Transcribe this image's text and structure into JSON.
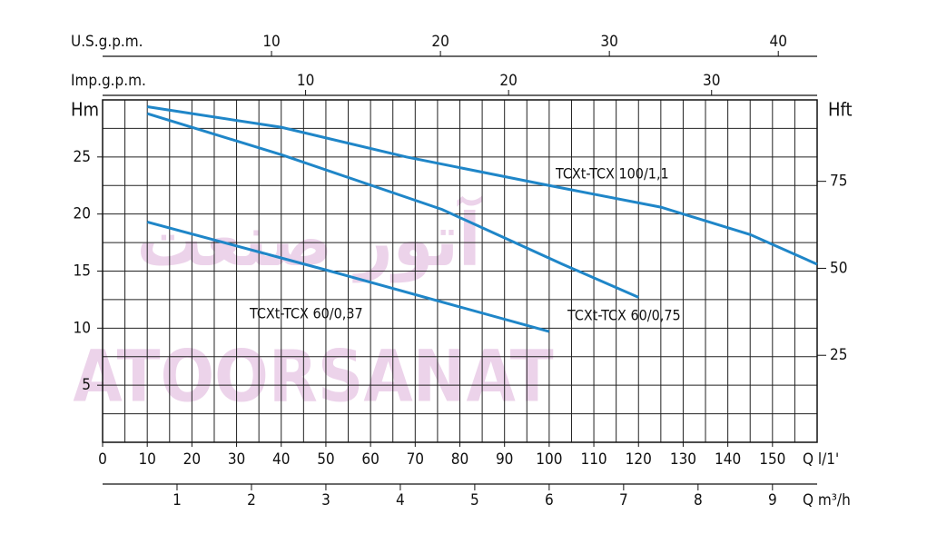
{
  "chart_data": {
    "type": "line",
    "watermark": "ATOORSANAT",
    "watermark_fa": "آتور صنعت",
    "xlabel": "Q l/1'",
    "xlim": [
      0,
      160
    ],
    "xticks": [
      0,
      10,
      20,
      30,
      40,
      50,
      60,
      70,
      80,
      90,
      100,
      110,
      120,
      130,
      140,
      150
    ],
    "xgrid_step": 5,
    "ylabel": "Hm",
    "ylim": [
      0,
      30
    ],
    "yticks": [
      5,
      10,
      15,
      20,
      25
    ],
    "ygrid_step": 2.5,
    "y2label": "Hft",
    "y2lim": [
      0,
      98.4
    ],
    "y2ticks": [
      25,
      50,
      75
    ],
    "x_top": [
      {
        "label": "U.S.g.p.m.",
        "lim": [
          0,
          42.3
        ],
        "ticks": [
          10,
          20,
          30,
          40
        ]
      },
      {
        "label": "Imp.g.p.m.",
        "lim": [
          0,
          35.2
        ],
        "ticks": [
          10,
          20,
          30
        ]
      }
    ],
    "x_bottom2": {
      "label": "Q m³/h",
      "lim": [
        0,
        9.6
      ],
      "ticks": [
        1,
        2,
        3,
        4,
        5,
        6,
        7,
        8,
        9
      ]
    },
    "grid": true,
    "series": [
      {
        "name": "TCXt-TCX 100/1,1",
        "color": "#1f86c8",
        "x": [
          10,
          40,
          68,
          100,
          125,
          145,
          160
        ],
        "values": [
          29.4,
          27.6,
          25,
          22.5,
          20.6,
          18.2,
          15.6
        ]
      },
      {
        "name": "TCXt-TCX 60/0,75",
        "color": "#1f86c8",
        "x": [
          10,
          40,
          76,
          103,
          120
        ],
        "values": [
          28.8,
          25.2,
          20.4,
          15.6,
          12.7
        ]
      },
      {
        "name": "TCXt-TCX 60/0,37",
        "color": "#1f86c8",
        "x": [
          10,
          50,
          100
        ],
        "values": [
          19.3,
          15.1,
          9.7
        ]
      }
    ]
  }
}
